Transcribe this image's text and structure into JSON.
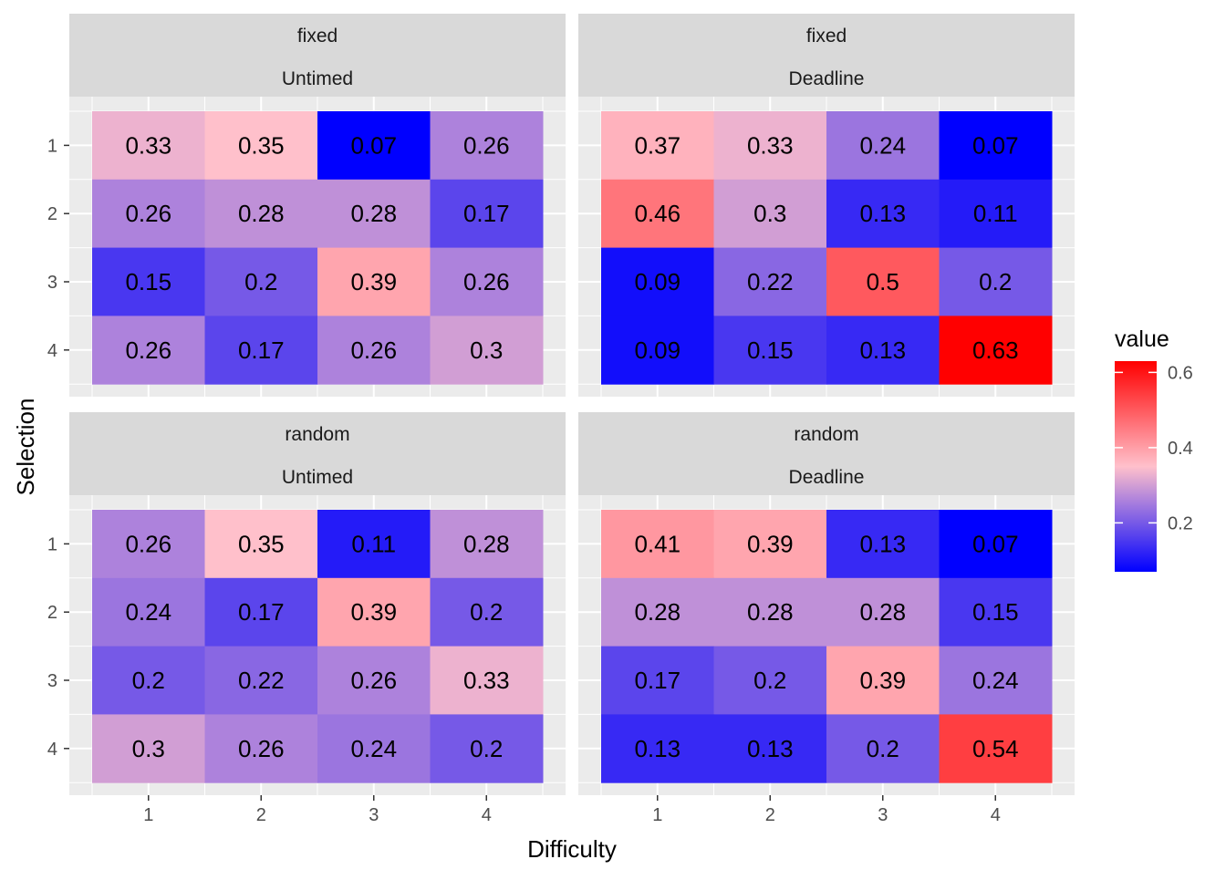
{
  "chart_data": {
    "type": "heatmap",
    "xlabel": "Difficulty",
    "ylabel": "Selection",
    "x_categories": [
      "1",
      "2",
      "3",
      "4"
    ],
    "y_categories": [
      "1",
      "2",
      "3",
      "4"
    ],
    "facets": [
      {
        "strip_top": "fixed",
        "strip_bottom": "Untimed",
        "values": [
          [
            0.33,
            0.35,
            0.07,
            0.26
          ],
          [
            0.26,
            0.28,
            0.28,
            0.17
          ],
          [
            0.15,
            0.2,
            0.39,
            0.26
          ],
          [
            0.26,
            0.17,
            0.26,
            0.3
          ]
        ]
      },
      {
        "strip_top": "fixed",
        "strip_bottom": "Deadline",
        "values": [
          [
            0.37,
            0.33,
            0.24,
            0.07
          ],
          [
            0.46,
            0.3,
            0.13,
            0.11
          ],
          [
            0.09,
            0.22,
            0.5,
            0.2
          ],
          [
            0.09,
            0.15,
            0.13,
            0.63
          ]
        ]
      },
      {
        "strip_top": "random",
        "strip_bottom": "Untimed",
        "values": [
          [
            0.26,
            0.35,
            0.11,
            0.28
          ],
          [
            0.24,
            0.17,
            0.39,
            0.2
          ],
          [
            0.2,
            0.22,
            0.26,
            0.33
          ],
          [
            0.3,
            0.26,
            0.24,
            0.2
          ]
        ]
      },
      {
        "strip_top": "random",
        "strip_bottom": "Deadline",
        "values": [
          [
            0.41,
            0.39,
            0.13,
            0.07
          ],
          [
            0.28,
            0.28,
            0.28,
            0.15
          ],
          [
            0.17,
            0.2,
            0.39,
            0.24
          ],
          [
            0.13,
            0.13,
            0.2,
            0.54
          ]
        ]
      }
    ],
    "legend": {
      "title": "value",
      "ticks": [
        "0.6",
        "0.4",
        "0.2"
      ],
      "tick_values": [
        0.6,
        0.4,
        0.2
      ],
      "range": [
        0.07,
        0.63
      ],
      "colors": {
        "low": "#0000FF",
        "mid": "#FFC0CB",
        "high": "#FF0000"
      },
      "midpoint": 0.35,
      "placement": "right"
    },
    "panel_background": "#EBEBEB",
    "strip_background": "#D9D9D9",
    "grid": true
  }
}
